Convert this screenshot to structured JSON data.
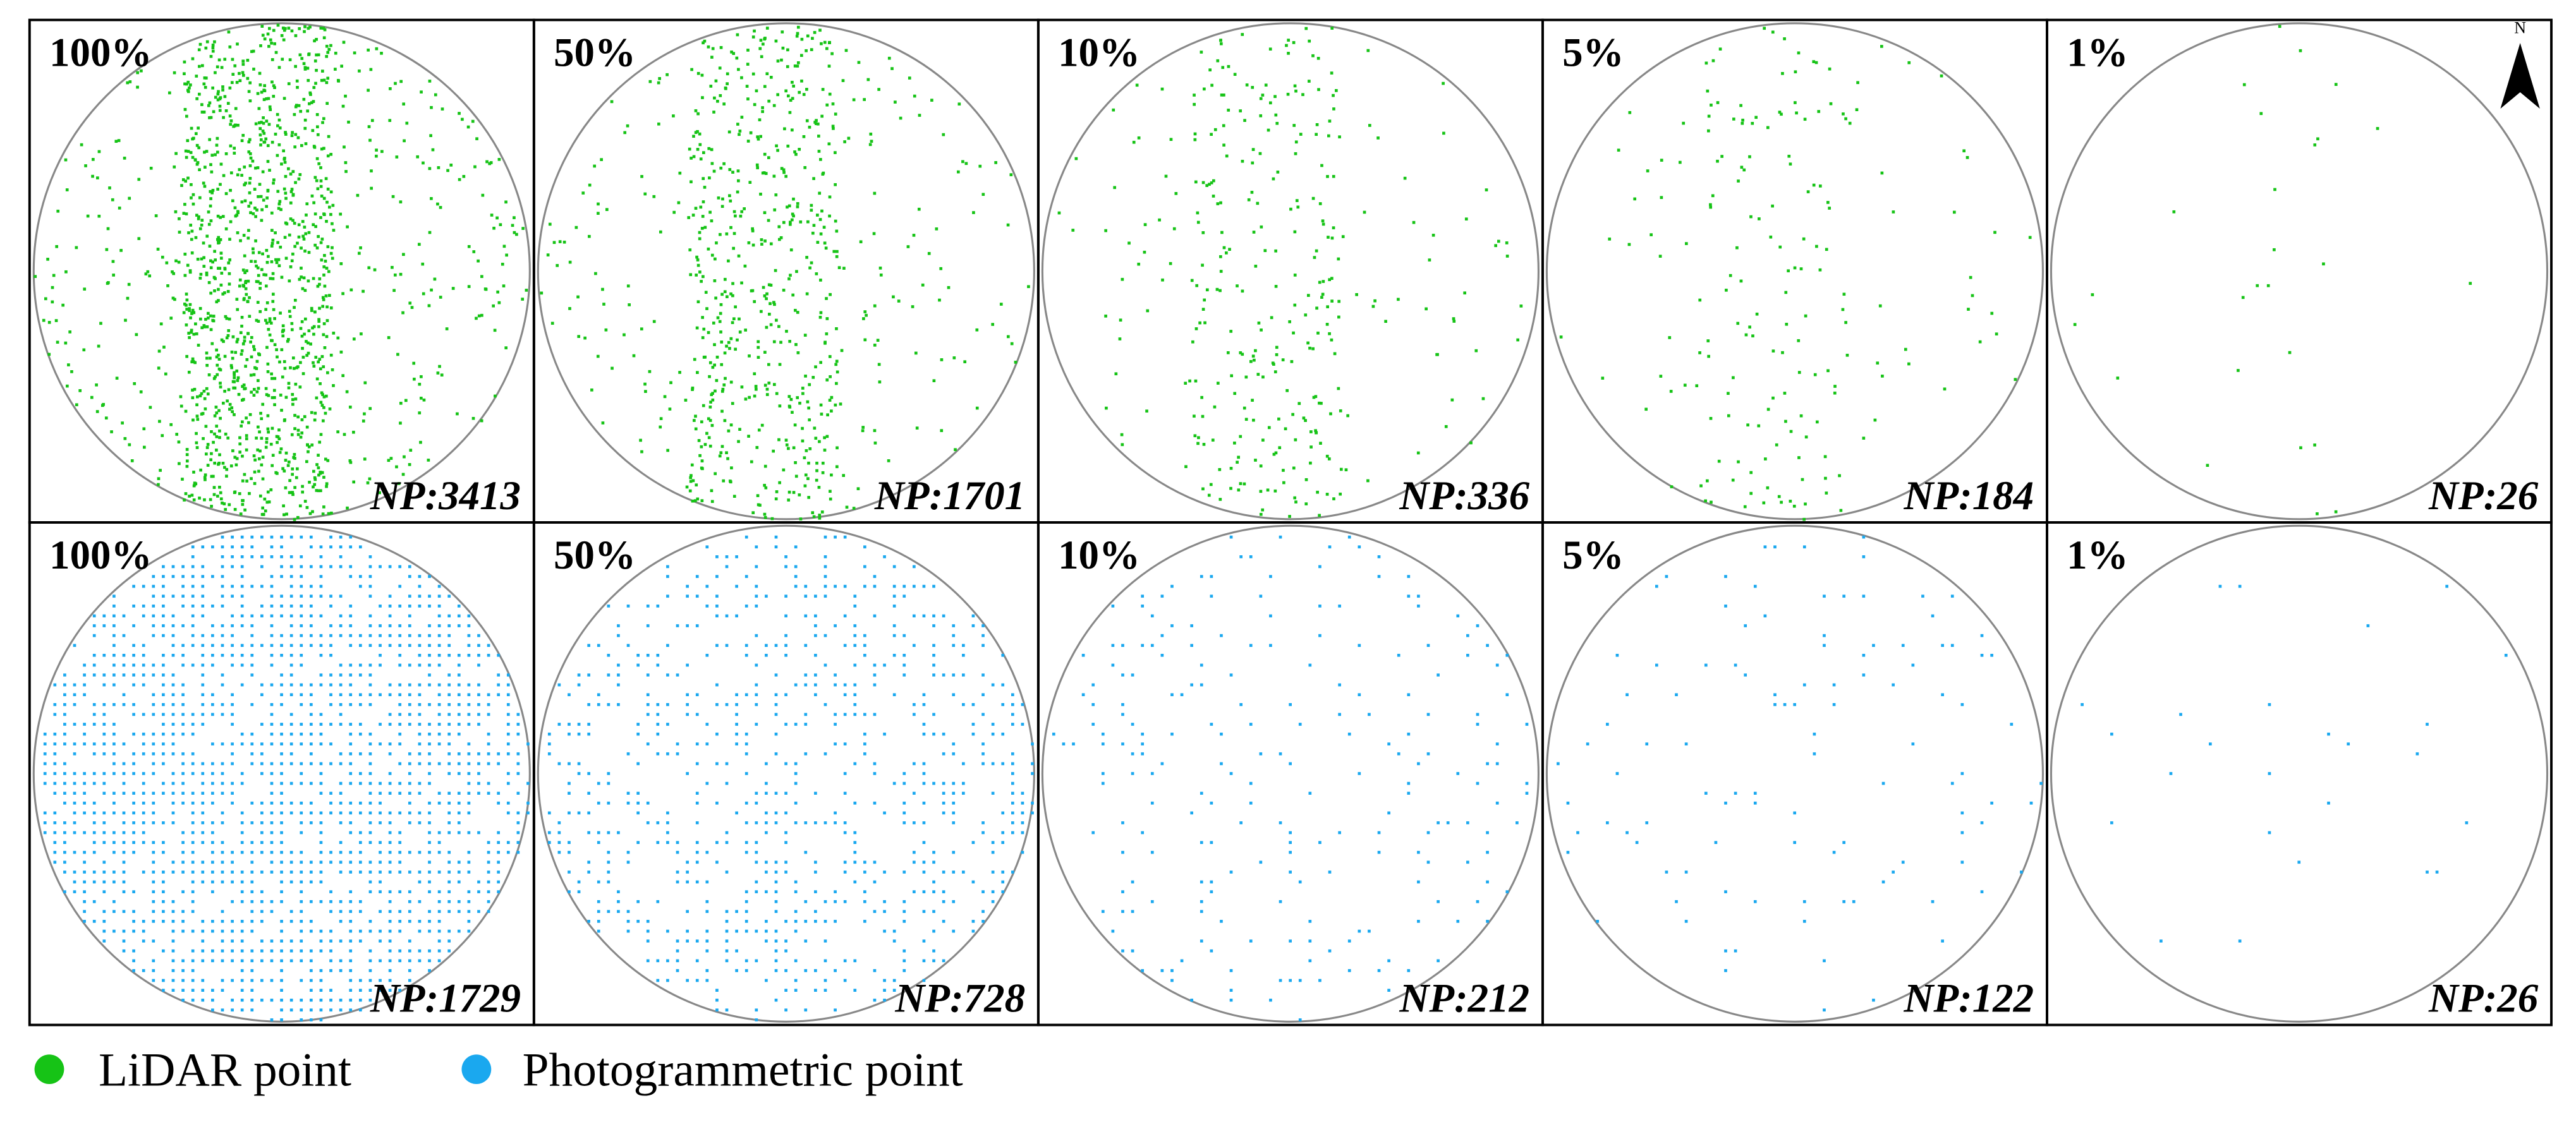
{
  "rows": [
    {
      "panels": [
        {
          "label": "100%",
          "np": "NP:3413"
        },
        {
          "label": "50%",
          "np": "NP:1701"
        },
        {
          "label": "10%",
          "np": "NP:336"
        },
        {
          "label": "5%",
          "np": "NP:184"
        },
        {
          "label": "1%",
          "np": "NP:26"
        }
      ]
    },
    {
      "panels": [
        {
          "label": "100%",
          "np": "NP:1729"
        },
        {
          "label": "50%",
          "np": "NP:728"
        },
        {
          "label": "10%",
          "np": "NP:212"
        },
        {
          "label": "5%",
          "np": "NP:122"
        },
        {
          "label": "1%",
          "np": "NP:26"
        }
      ]
    }
  ],
  "north": "N",
  "legend": [
    "LiDAR point",
    "Photogrammetric point"
  ]
}
